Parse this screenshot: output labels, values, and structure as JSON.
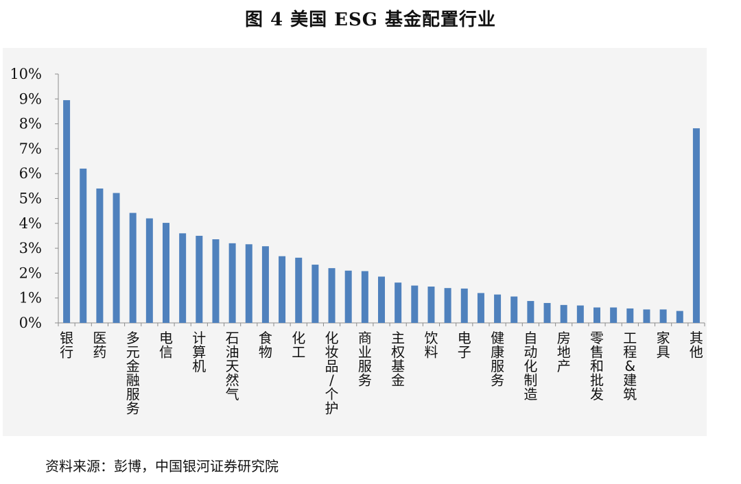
{
  "title": "图 4   美国 ESG 基金配置行业",
  "source": "资料来源：彭博，中国银河证券研究院",
  "chart_data": {
    "type": "bar",
    "title": "图 4   美国 ESG 基金配置行业",
    "xlabel": "",
    "ylabel": "",
    "ylim": [
      0,
      10
    ],
    "yticks": [
      "0%",
      "1%",
      "2%",
      "3%",
      "4%",
      "5%",
      "6%",
      "7%",
      "8%",
      "9%",
      "10%"
    ],
    "grid": false,
    "bar_color": "#4f81bd",
    "categories": [
      "银行",
      "",
      "医药",
      "",
      "多元金融服务",
      "",
      "电信",
      "",
      "计算机",
      "",
      "石油天然气",
      "",
      "食物",
      "",
      "化工",
      "",
      "化妆品/个护",
      "",
      "商业服务",
      "",
      "主权基金",
      "",
      "饮料",
      "",
      "电子",
      "",
      "健康服务",
      "",
      "自动化制造",
      "",
      "房地产",
      "",
      "零售和批发",
      "",
      "工程&建筑",
      "",
      "家具",
      "",
      "其他"
    ],
    "values": [
      8.95,
      6.2,
      5.4,
      5.22,
      4.42,
      4.2,
      4.02,
      3.6,
      3.5,
      3.36,
      3.2,
      3.16,
      3.08,
      2.68,
      2.62,
      2.34,
      2.2,
      2.1,
      2.08,
      1.86,
      1.62,
      1.5,
      1.46,
      1.4,
      1.38,
      1.2,
      1.14,
      1.06,
      0.88,
      0.8,
      0.72,
      0.7,
      0.62,
      0.62,
      0.58,
      0.54,
      0.54,
      0.48,
      7.82
    ]
  }
}
